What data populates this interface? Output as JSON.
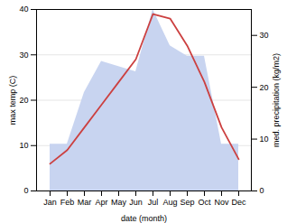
{
  "chart_data": {
    "type": "line",
    "xlabel": "date (month)",
    "ylabel": "max temp (C)",
    "y2label": "med. precipitation (kg/m2)",
    "categories": [
      "Jan",
      "Feb",
      "Mar",
      "Apr",
      "May",
      "Jun",
      "Jul",
      "Aug",
      "Sep",
      "Oct",
      "Nov",
      "Dec"
    ],
    "series": [
      {
        "type": "area",
        "axis": "y2",
        "color": "#c8d4f0",
        "values": [
          9.0,
          9.0,
          19.0,
          25.0,
          24.0,
          23.0,
          35.0,
          28.0,
          26.0,
          26.0,
          9.0,
          9.0
        ]
      },
      {
        "type": "line",
        "color": "#cc4040",
        "values": [
          6.0,
          9.0,
          14.0,
          19.0,
          24.0,
          29.0,
          39.0,
          38.0,
          32.0,
          24.0,
          14.0,
          7.0
        ]
      }
    ],
    "ylim": [
      0,
      40
    ],
    "yticks": [
      0,
      10,
      20,
      30,
      40
    ],
    "y2lim": [
      0,
      35
    ],
    "y2ticks": [
      0,
      10,
      20,
      30
    ],
    "grid": true
  }
}
